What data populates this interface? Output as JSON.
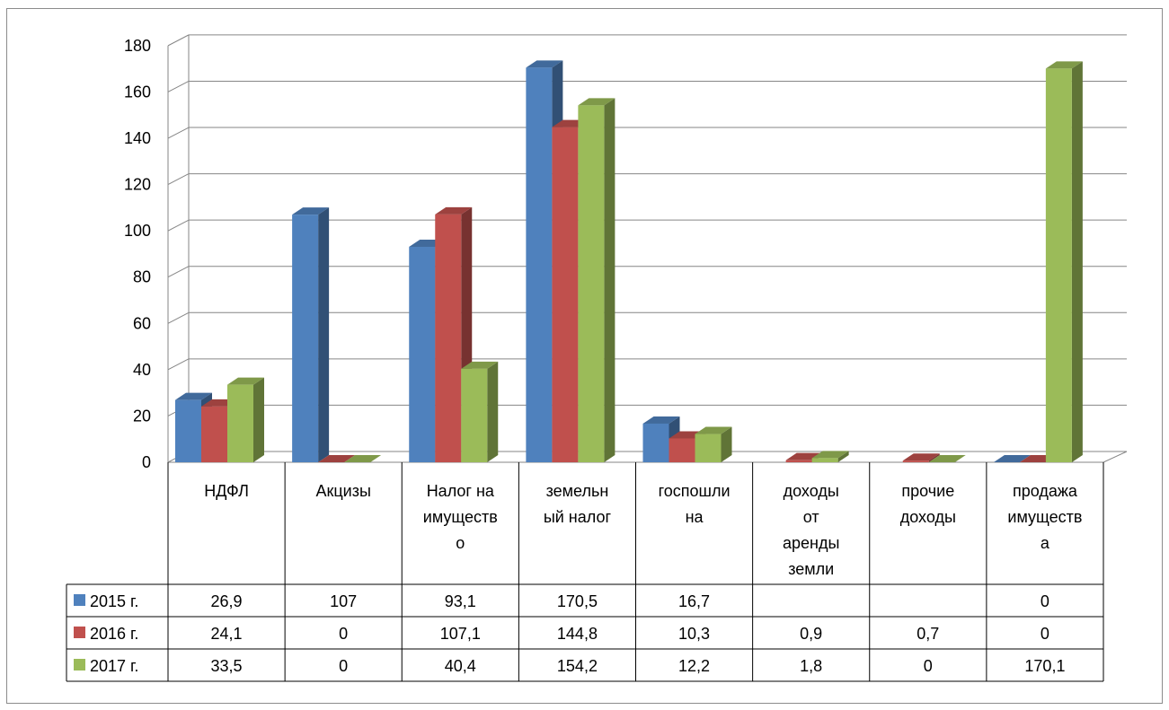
{
  "chart_data": {
    "type": "bar",
    "title": "",
    "xlabel": "",
    "ylabel": "",
    "ylim": [
      0,
      180
    ],
    "yticks": [
      0,
      20,
      40,
      60,
      80,
      100,
      120,
      140,
      160,
      180
    ],
    "grid": true,
    "legend_placement": "data-table-left",
    "categories": [
      [
        "НДФЛ"
      ],
      [
        "Акцизы"
      ],
      [
        "Налог на",
        "имуществ",
        "о"
      ],
      [
        "земельн",
        "ый налог"
      ],
      [
        "госпошли",
        "на"
      ],
      [
        "доходы",
        "от",
        "аренды",
        "земли"
      ],
      [
        "прочие",
        "доходы"
      ],
      [
        "продажа",
        "имуществ",
        "а"
      ]
    ],
    "series": [
      {
        "name": "2015 г.",
        "color": "#4F81BD",
        "values": [
          26.9,
          107,
          93.1,
          170.5,
          16.7,
          null,
          null,
          0
        ],
        "labels": [
          "26,9",
          "107",
          "93,1",
          "170,5",
          "16,7",
          "",
          "",
          "0"
        ]
      },
      {
        "name": "2016 г.",
        "color": "#C0504D",
        "values": [
          24.1,
          0,
          107.1,
          144.8,
          10.3,
          0.9,
          0.7,
          0
        ],
        "labels": [
          "24,1",
          "0",
          "107,1",
          "144,8",
          "10,3",
          "0,9",
          "0,7",
          "0"
        ]
      },
      {
        "name": "2017 г.",
        "color": "#9BBB59",
        "values": [
          33.5,
          0,
          40.4,
          154.2,
          12.2,
          1.8,
          0,
          170.1
        ],
        "labels": [
          "33,5",
          "0",
          "40,4",
          "154,2",
          "12,2",
          "1,8",
          "0",
          "170,1"
        ]
      }
    ]
  }
}
